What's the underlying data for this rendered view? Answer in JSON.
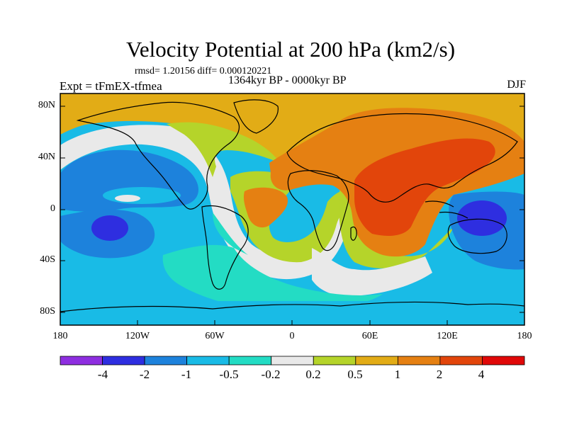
{
  "title": "Velocity Potential at 200 hPa (km2/s)",
  "stats_line": "rmsd= 1.20156 diff= 0.000120221",
  "period_label": "1364kyr BP - 0000kyr BP",
  "expt_label": "Expt = tFmEX-tfmea",
  "season_label": "DJF",
  "map": {
    "projection": "cylindrical-equidistant",
    "lon_range": [
      -180,
      180
    ],
    "lat_range": [
      -90,
      90
    ],
    "y_ticks": [
      "80N",
      "40N",
      "0",
      "40S",
      "80S"
    ],
    "x_ticks": [
      "180",
      "120W",
      "60W",
      "0",
      "60E",
      "120E",
      "180"
    ],
    "colors": {
      "lt_-4": "#8e2ee0",
      "-4_-2": "#2e2ee0",
      "-2_-1": "#1d82dc",
      "-1_-0.5": "#19bbe6",
      "-0.5_-0.2": "#23dcc4",
      "-0.2_0.2": "#e9e9e9",
      "0.2_0.5": "#b5d42a",
      "0.5_1": "#e2ac16",
      "1_2": "#e58012",
      "2_4": "#e2450b",
      "gt_4": "#e00808"
    }
  },
  "colorbar": {
    "levels": [
      "-4",
      "-2",
      "-1",
      "-0.5",
      "-0.2",
      "0.2",
      "0.5",
      "1",
      "2",
      "4"
    ],
    "colors": [
      "#8e2ee0",
      "#2e2ee0",
      "#1d82dc",
      "#19bbe6",
      "#23dcc4",
      "#e9e9e9",
      "#b5d42a",
      "#e2ac16",
      "#e58012",
      "#e2450b",
      "#e00808"
    ]
  }
}
